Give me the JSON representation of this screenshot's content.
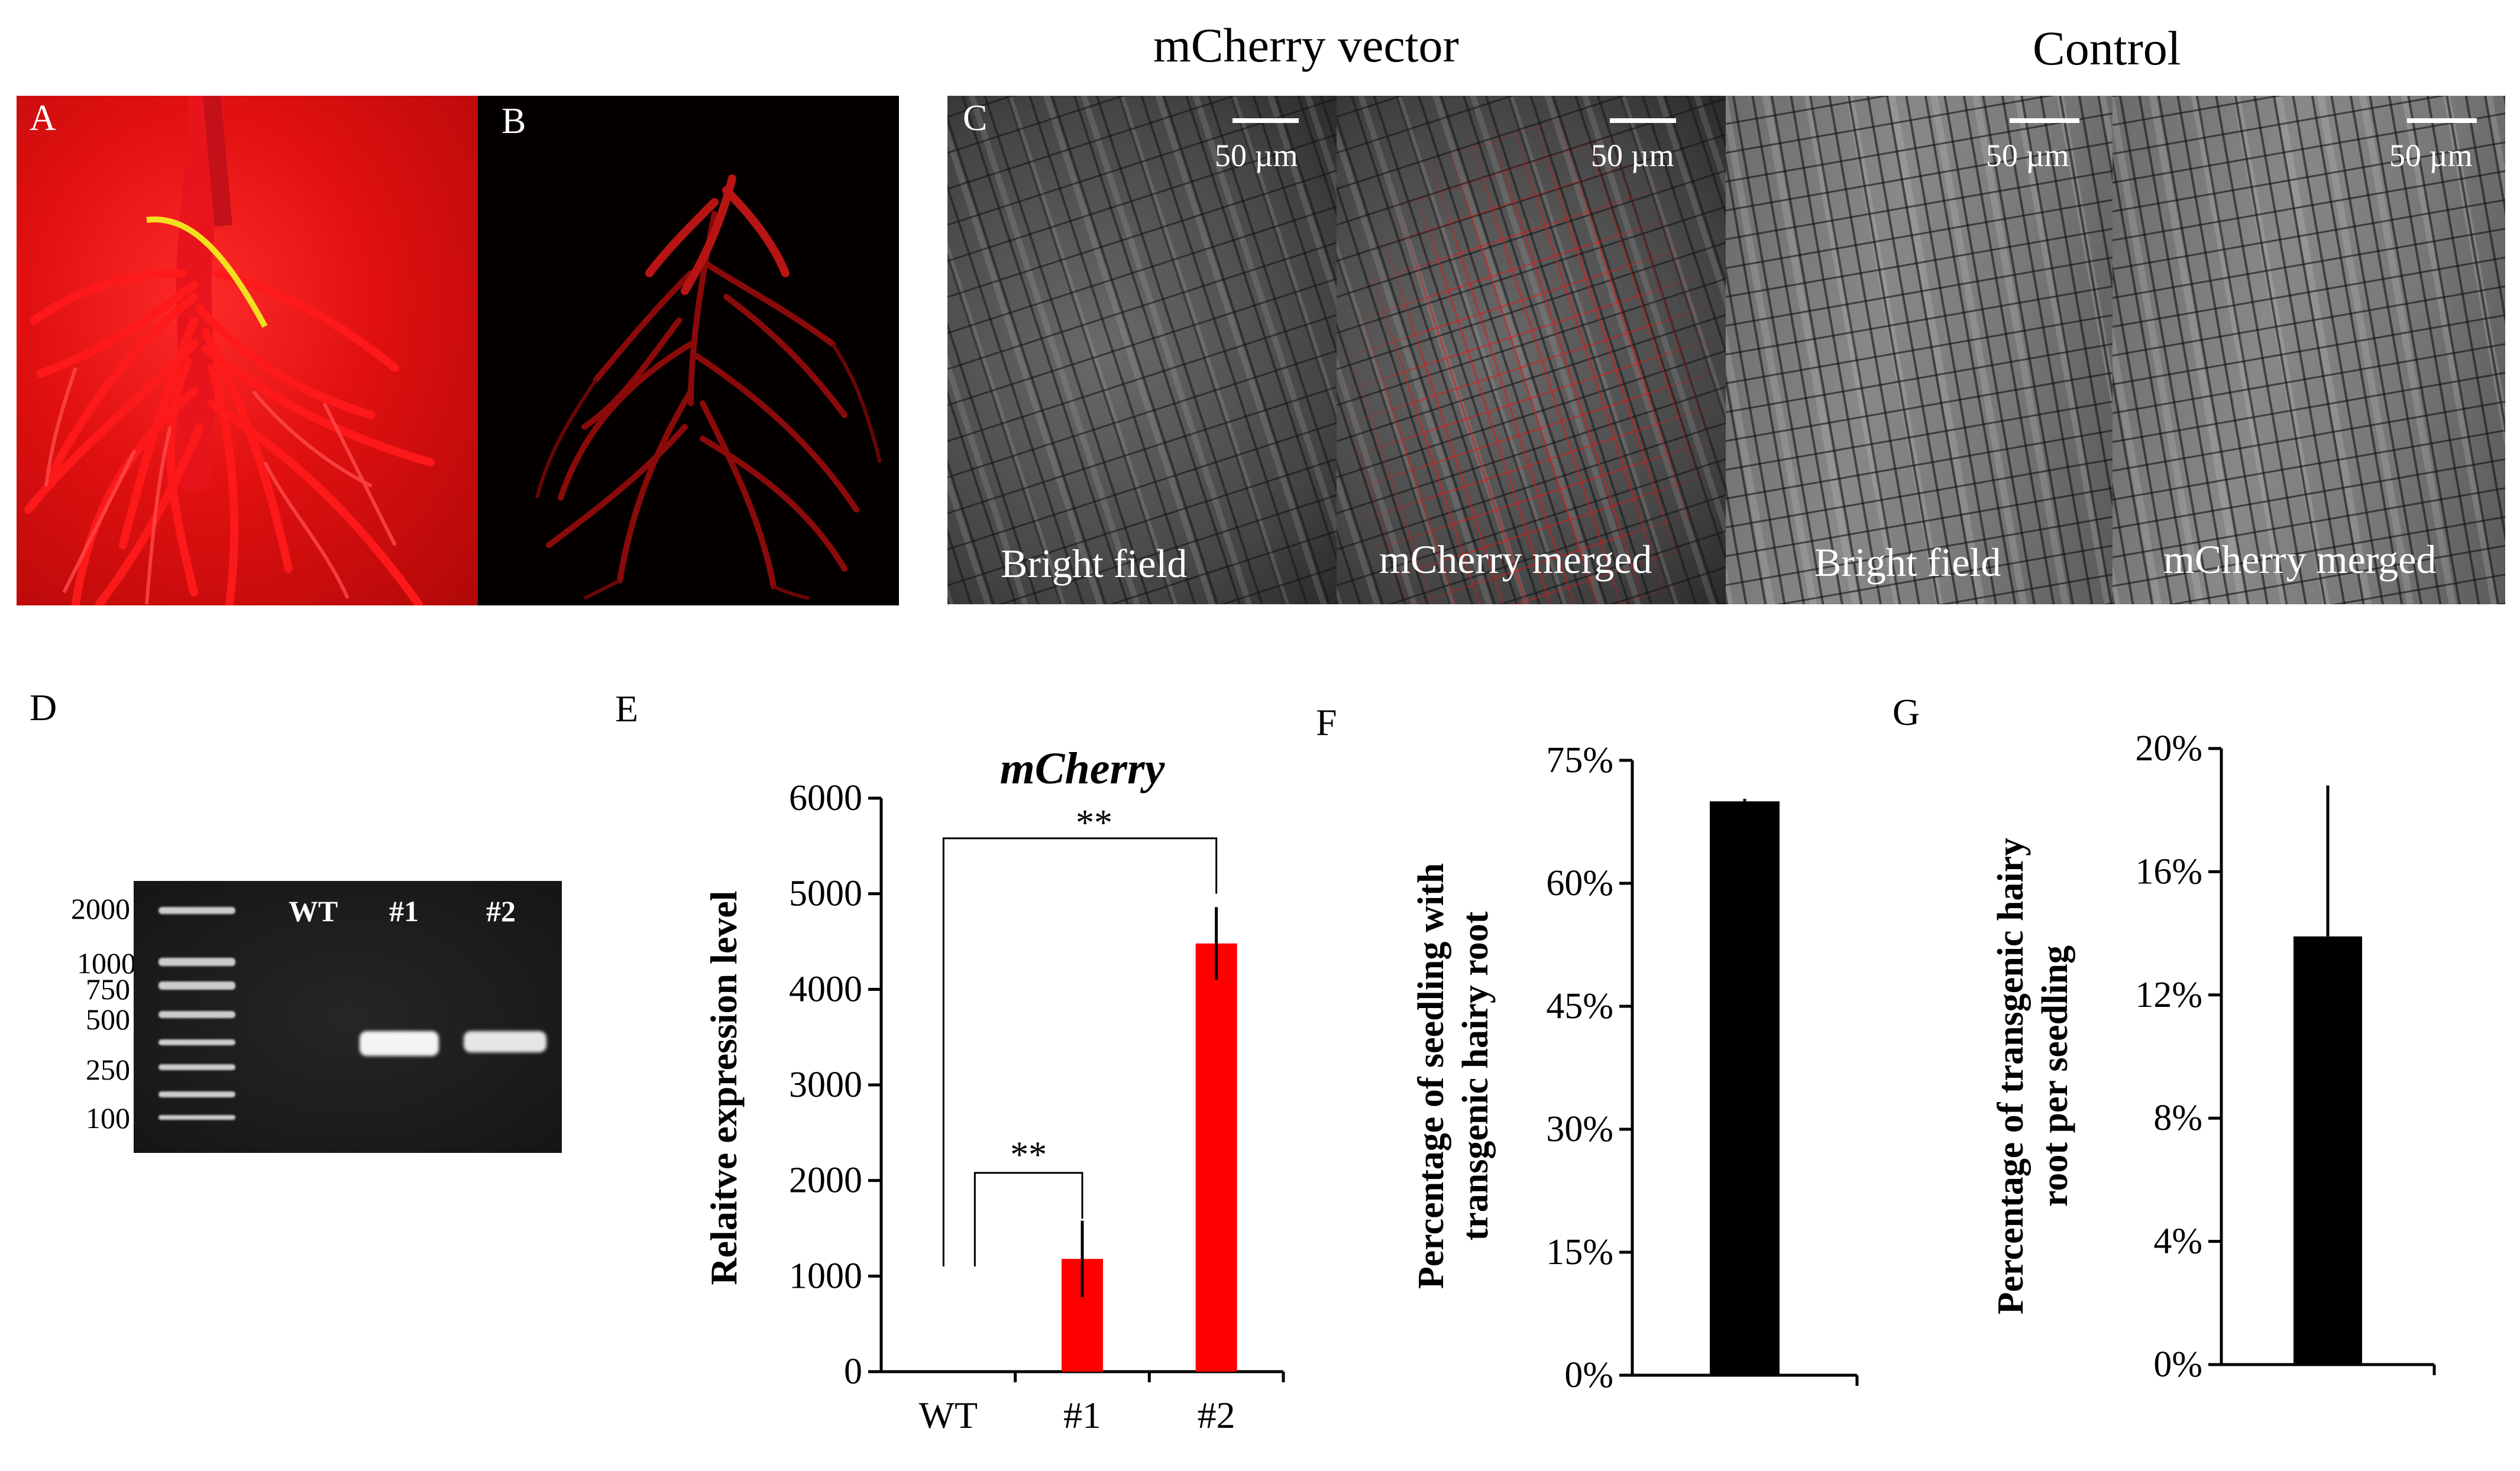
{
  "panel_letters": {
    "a": "A",
    "b": "B",
    "c": "C",
    "d": "D",
    "e": "E",
    "f": "F",
    "g": "G"
  },
  "panel_c": {
    "header_left": "mCherry vector",
    "header_right": "Control",
    "scale_label": "50 µm",
    "images": [
      {
        "label": "Bright field"
      },
      {
        "label": "mCherry merged"
      },
      {
        "label": "Bright field"
      },
      {
        "label": "mCherry merged"
      }
    ]
  },
  "panel_d": {
    "lanes": [
      "WT",
      "#1",
      "#2"
    ],
    "markers": [
      "2000",
      "1000",
      "750",
      "500",
      "250",
      "100"
    ]
  },
  "colors": {
    "bar_red": "#ff0000",
    "bar_black": "#000000",
    "root_red": "#e0141e"
  },
  "chart_data": [
    {
      "type": "bar",
      "panel": "E",
      "title": "mCherry",
      "ylabel": "Relaitve expression level",
      "categories": [
        "WT",
        "#1",
        "#2"
      ],
      "values": [
        0,
        1180,
        4480
      ],
      "errors": [
        0,
        400,
        380
      ],
      "ylim": [
        0,
        6000
      ],
      "yticks": [
        "0",
        "1000",
        "2000",
        "3000",
        "4000",
        "5000",
        "6000"
      ],
      "significance": [
        {
          "from": "WT",
          "to": "#1",
          "label": "**"
        },
        {
          "from": "WT",
          "to": "#2",
          "label": "**"
        }
      ],
      "grid": false
    },
    {
      "type": "bar",
      "panel": "F",
      "ylabel_line1": "Percentage of seedling with",
      "ylabel_line2": "transgenic hairy root",
      "values": [
        0.7
      ],
      "errors": [
        0.003
      ],
      "ylim": [
        0,
        0.75
      ],
      "yticks": [
        "0%",
        "15%",
        "30%",
        "45%",
        "60%",
        "75%"
      ],
      "grid": false
    },
    {
      "type": "bar",
      "panel": "G",
      "ylabel_line1": "Percentage of transgenic hairy",
      "ylabel_line2": "root per seedling",
      "values": [
        0.139
      ],
      "errors": [
        0.049
      ],
      "ylim": [
        0,
        0.2
      ],
      "yticks": [
        "0%",
        "4%",
        "8%",
        "12%",
        "16%",
        "20%"
      ],
      "grid": false
    }
  ]
}
